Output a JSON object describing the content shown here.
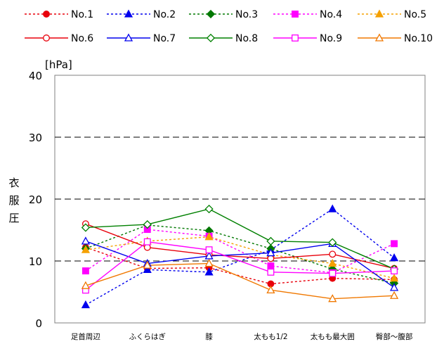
{
  "chart_data": {
    "type": "line",
    "unit_label": "[hPa]",
    "ylabel": "衣服圧",
    "ylim": [
      0,
      40
    ],
    "yticks": [
      0,
      10,
      20,
      30,
      40
    ],
    "grid": "dashed horizontal",
    "legend_position": "top",
    "categories": [
      "足首周辺",
      "ふくらはぎ",
      "膝",
      "太もも1/2",
      "太もも最大囲",
      "臀部～腹部"
    ],
    "series": [
      {
        "name": "No.1",
        "color": "#e8000b",
        "dash": true,
        "marker": "circle",
        "filled": true,
        "values": [
          12.2,
          8.8,
          8.9,
          6.3,
          7.2,
          7.0
        ]
      },
      {
        "name": "No.2",
        "color": "#0000ee",
        "dash": true,
        "marker": "triangle",
        "filled": true,
        "values": [
          2.9,
          8.6,
          8.2,
          11.8,
          18.4,
          10.5
        ]
      },
      {
        "name": "No.3",
        "color": "#007800",
        "dash": true,
        "marker": "diamond",
        "filled": true,
        "values": [
          12.0,
          15.8,
          14.9,
          12.0,
          8.7,
          6.4
        ]
      },
      {
        "name": "No.4",
        "color": "#ff00ff",
        "dash": true,
        "marker": "square",
        "filled": true,
        "values": [
          8.4,
          15.1,
          14.0,
          9.2,
          8.1,
          12.8
        ]
      },
      {
        "name": "No.5",
        "color": "#f5a000",
        "dash": true,
        "marker": "triangle",
        "filled": true,
        "values": [
          11.8,
          13.2,
          13.9,
          11.0,
          9.6,
          7.2
        ]
      },
      {
        "name": "No.6",
        "color": "#e8000b",
        "dash": false,
        "marker": "circle",
        "filled": false,
        "values": [
          16.0,
          12.2,
          11.0,
          10.4,
          11.1,
          8.8
        ]
      },
      {
        "name": "No.7",
        "color": "#0000ee",
        "dash": false,
        "marker": "triangle",
        "filled": false,
        "values": [
          13.2,
          9.6,
          10.8,
          11.3,
          12.8,
          5.7
        ]
      },
      {
        "name": "No.8",
        "color": "#008000",
        "dash": false,
        "marker": "diamond",
        "filled": false,
        "values": [
          15.4,
          15.9,
          18.4,
          13.2,
          13.0,
          8.7
        ]
      },
      {
        "name": "No.9",
        "color": "#ff00ff",
        "dash": false,
        "marker": "square",
        "filled": false,
        "values": [
          5.3,
          13.1,
          11.8,
          8.2,
          8.0,
          8.4
        ]
      },
      {
        "name": "No.10",
        "color": "#f07800",
        "dash": false,
        "marker": "triangle",
        "filled": false,
        "values": [
          6.0,
          9.3,
          9.6,
          5.3,
          3.9,
          4.4
        ]
      }
    ]
  }
}
